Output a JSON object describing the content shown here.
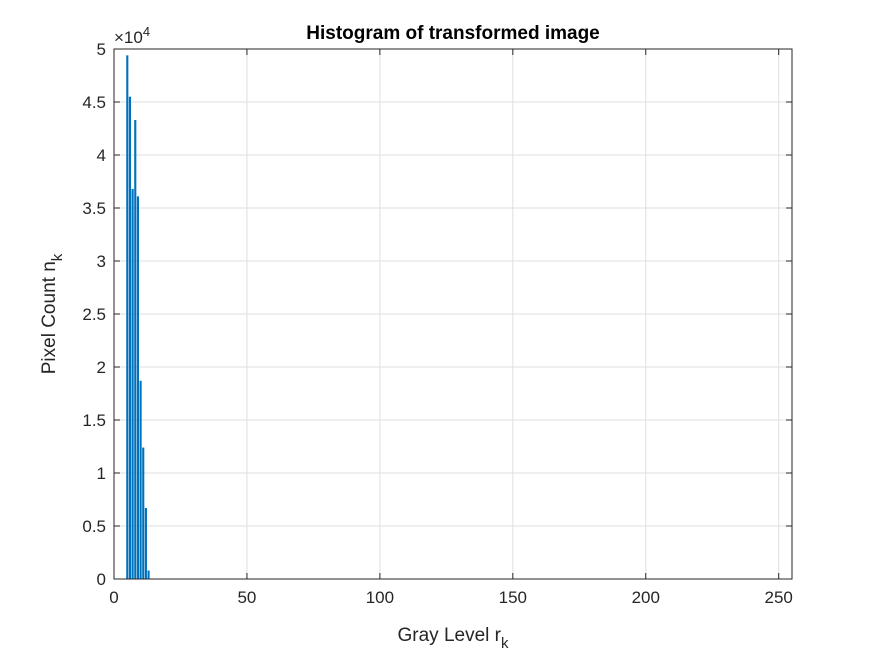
{
  "chart_data": {
    "type": "bar",
    "title": "Histogram of transformed image",
    "xlabel": {
      "main": "Gray Level r",
      "sub": "k"
    },
    "ylabel": {
      "main": "Pixel Count n",
      "sub": "k"
    },
    "exponent": {
      "base": "×10",
      "power": "4"
    },
    "xlim": [
      0,
      255
    ],
    "ylim": [
      0,
      50000
    ],
    "y_scale_factor": 10000,
    "xticks": [
      0,
      50,
      100,
      150,
      200,
      250
    ],
    "yticks": [
      0,
      0.5,
      1,
      1.5,
      2,
      2.5,
      3,
      3.5,
      4,
      4.5,
      5
    ],
    "grid": true,
    "bar_color": "#0072BD",
    "series": [
      {
        "x": [
          5,
          6,
          7,
          8,
          9,
          10,
          11,
          12,
          13
        ],
        "values": [
          49400,
          45500,
          36800,
          43300,
          36100,
          18700,
          12400,
          6700,
          800
        ]
      }
    ]
  }
}
